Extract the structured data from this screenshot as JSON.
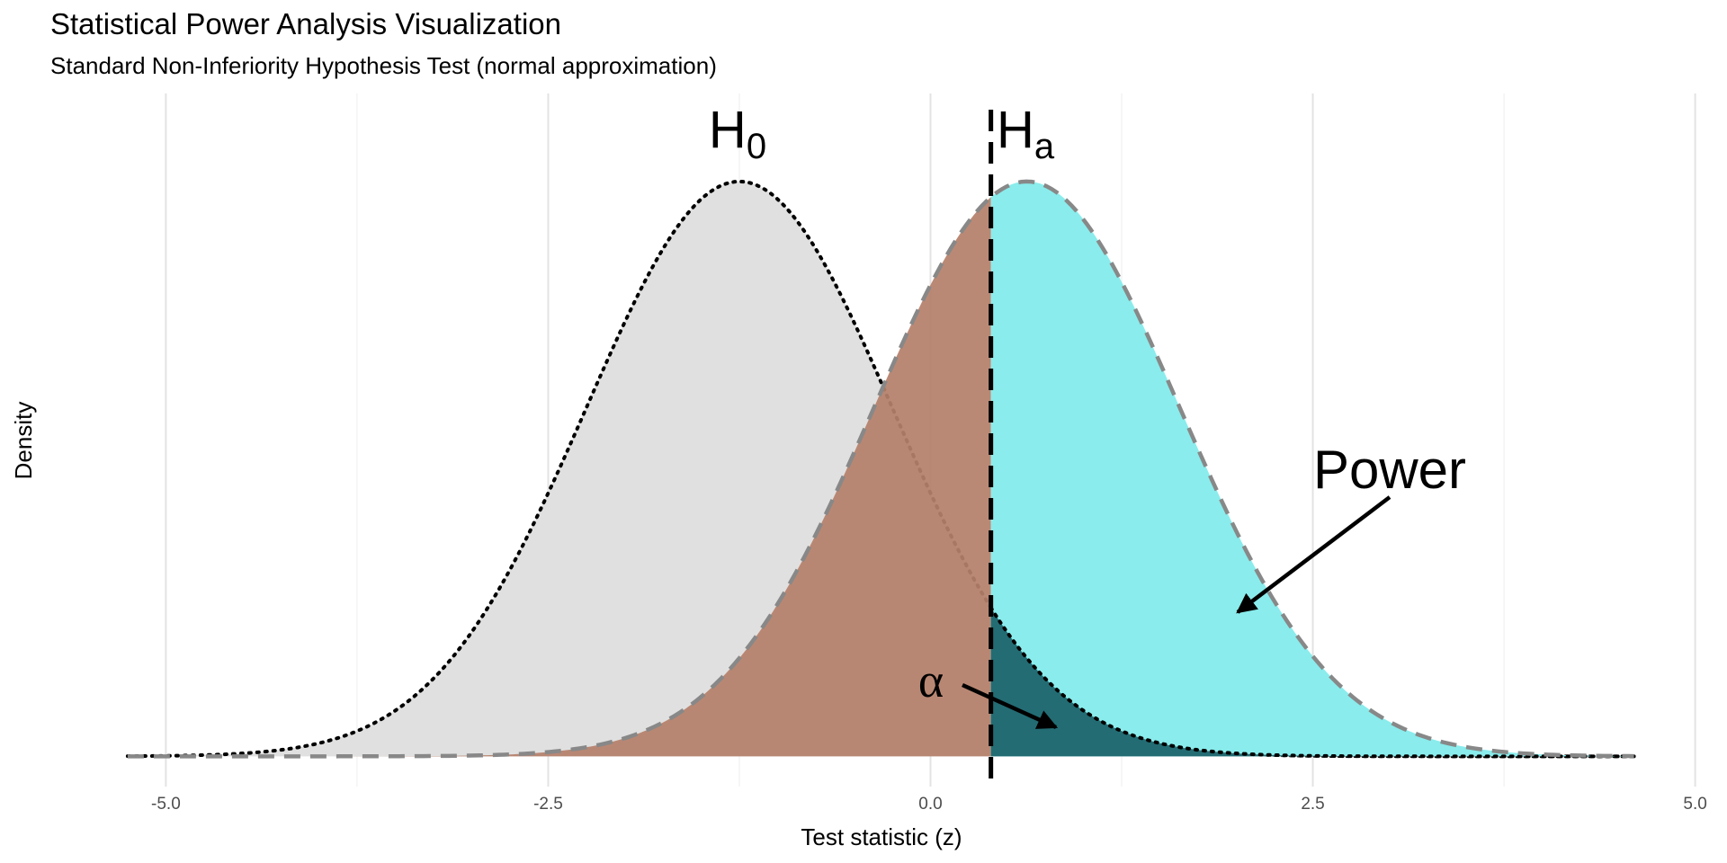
{
  "chart_data": {
    "type": "density",
    "title": "Statistical Power Analysis Visualization",
    "subtitle": "Standard Non-Inferiority Hypothesis Test (normal approximation)",
    "x_label": "Test statistic (z)",
    "y_label": "Density",
    "xlim": [
      -5.32,
      5.12
    ],
    "ylim": [
      -0.021,
      0.46
    ],
    "xticks": [
      {
        "value": -5,
        "label": "-5.0"
      },
      -2.5,
      {
        "value": 0,
        "label": "0.0"
      },
      2.5,
      {
        "value": 5,
        "label": "5.0"
      }
    ],
    "x_minor_ticks": [
      -3.75,
      -1.25,
      1.25,
      3.75
    ],
    "grid": true,
    "x_range": [
      -5.25,
      4.6
    ],
    "critical_value": 0.395,
    "distributions": [
      {
        "mean": -1.25,
        "sd": 1,
        "fill": "#e0e0e0",
        "tail_fill": "#236c73",
        "line_color": "#000000",
        "line": "dotted"
      },
      {
        "mean": 0.63,
        "sd": 1,
        "fill": "#8aecec",
        "tail_fill": "#b5806a",
        "line_color": "#888888",
        "line": "dashed"
      }
    ],
    "annotations": [
      {
        "text": "H",
        "sub": "0"
      },
      {
        "text": "H",
        "sub": "a"
      },
      {
        "text": "Power"
      },
      {
        "text": "α"
      }
    ]
  }
}
